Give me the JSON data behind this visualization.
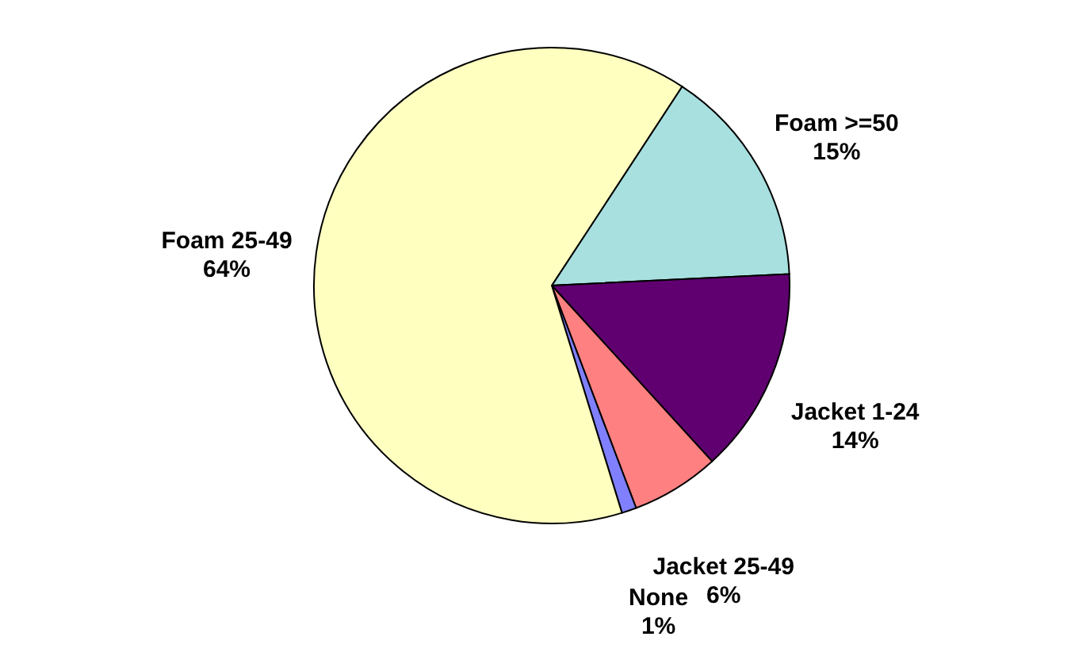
{
  "chart_data": {
    "type": "pie",
    "categories": [
      "Foam >=50",
      "Jacket 1-24",
      "Jacket 25-49",
      "None",
      "Foam 25-49"
    ],
    "values": [
      15,
      14,
      6,
      1,
      64
    ],
    "colors": [
      "#a8e0e0",
      "#600070",
      "#ff8080",
      "#8080ff",
      "#ffffc0"
    ],
    "value_labels": [
      "15%",
      "14%",
      "6%",
      "1%",
      "64%"
    ]
  }
}
